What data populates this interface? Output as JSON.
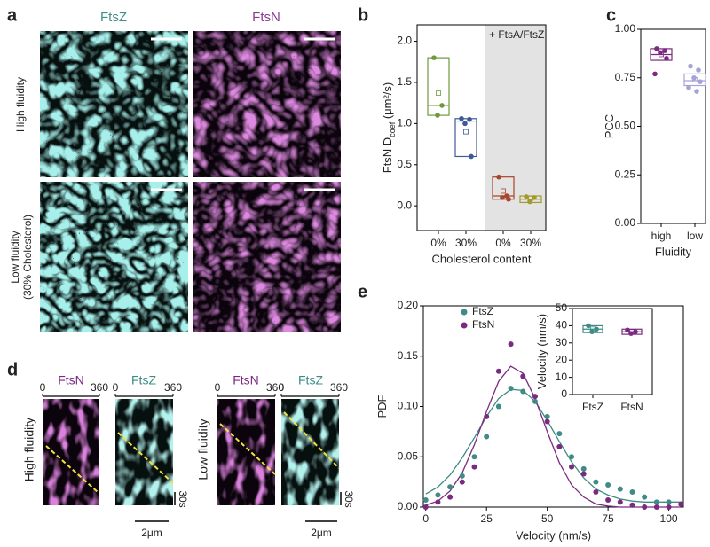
{
  "panel_labels": [
    "a",
    "b",
    "c",
    "d",
    "e"
  ],
  "microscopy": {
    "columns": [
      "FtsZ",
      "FtsN"
    ],
    "rows": [
      [
        "High fluidity"
      ],
      [
        "Low fluidity",
        "(30% Cholesterol)"
      ]
    ]
  },
  "kymographs": {
    "channels": [
      "FtsN",
      "FtsZ"
    ],
    "rows": [
      "High fluidity",
      "Low fluidity"
    ],
    "ticks": [
      0,
      360
    ],
    "time_scale": "30s",
    "length_scale": "2μm"
  },
  "chart_data": [
    {
      "type": "box",
      "annotation": "+ FtsA/FtsZ",
      "ylabel": "FtsN D",
      "ylabel_sub": "coef",
      "ylabel_unit": " (μm²/s)",
      "xlabel": "Cholesterol content",
      "categories": [
        "0%",
        "30%",
        "0%",
        "30%"
      ],
      "ylim": [
        -0.3,
        2.2
      ],
      "yticks": [
        {
          "value": 0,
          "label": "0.0"
        },
        {
          "value": 0.5,
          "label": "0.5"
        },
        {
          "value": 1,
          "label": "1.0"
        },
        {
          "value": 1.5,
          "label": "1.5"
        },
        {
          "value": 2,
          "label": "2.0"
        }
      ],
      "boxes": [
        {
          "color": "#6e9a3c",
          "q1": 1.1,
          "median": 1.22,
          "q3": 1.8,
          "mean": 1.37,
          "points": [
            1.8,
            1.22,
            1.1
          ]
        },
        {
          "color": "#3d5a99",
          "q1": 0.6,
          "median": 1.03,
          "q3": 1.06,
          "mean": 0.9,
          "points": [
            1.06,
            1.05,
            1.0,
            0.6
          ]
        },
        {
          "color": "#a8462c",
          "q1": 0.08,
          "median": 0.12,
          "q3": 0.35,
          "mean": 0.18,
          "points": [
            0.35,
            0.12,
            0.1,
            0.08
          ]
        },
        {
          "color": "#a39a2c",
          "q1": 0.04,
          "median": 0.08,
          "q3": 0.12,
          "mean": 0.09,
          "points": [
            0.11,
            0.1,
            0.05
          ]
        }
      ]
    },
    {
      "type": "box",
      "xlabel": "Fluidity",
      "ylabel": "PCC",
      "categories": [
        "high",
        "low"
      ],
      "ylim": [
        0,
        1
      ],
      "yticks": [
        {
          "value": 0,
          "label": "0.00"
        },
        {
          "value": 0.25,
          "label": "0.25"
        },
        {
          "value": 0.5,
          "label": "0.50"
        },
        {
          "value": 0.75,
          "label": "0.75"
        },
        {
          "value": 1,
          "label": "1.00"
        }
      ],
      "boxes": [
        {
          "color": "#7b2a7e",
          "q1": 0.84,
          "median": 0.87,
          "q3": 0.9,
          "mean": 0.87,
          "points": [
            0.9,
            0.89,
            0.88,
            0.85,
            0.77
          ]
        },
        {
          "color": "#a7a3d6",
          "q1": 0.71,
          "median": 0.735,
          "q3": 0.77,
          "mean": 0.74,
          "points": [
            0.81,
            0.79,
            0.75,
            0.73,
            0.7,
            0.68
          ]
        }
      ]
    },
    {
      "type": "scatter",
      "xlabel": "Velocity (nm/s)",
      "ylabel": "PDF",
      "xlim": [
        -1,
        106
      ],
      "ylim": [
        0,
        0.2
      ],
      "xticks": [
        0,
        25,
        50,
        75,
        100
      ],
      "yticks": [
        {
          "value": 0,
          "label": "0.00"
        },
        {
          "value": 0.05,
          "label": "0.05"
        },
        {
          "value": 0.1,
          "label": "0.10"
        },
        {
          "value": 0.15,
          "label": "0.15"
        },
        {
          "value": 0.2,
          "label": "0.20"
        }
      ],
      "legend": "upper left",
      "x": [
        0,
        5,
        10,
        15,
        20,
        25,
        30,
        35,
        40,
        45,
        50,
        55,
        60,
        65,
        70,
        75,
        80,
        85,
        90,
        95,
        100,
        105
      ],
      "series": [
        {
          "name": "FtsZ",
          "color": "#3e8c84",
          "values": [
            0.007,
            0.012,
            0.02,
            0.031,
            0.05,
            0.07,
            0.1,
            0.118,
            0.115,
            0.105,
            0.09,
            0.073,
            0.05,
            0.038,
            0.025,
            0.022,
            0.018,
            0.015,
            0.01,
            0.005,
            0.005,
            0.003
          ]
        },
        {
          "name": "FtsN",
          "color": "#7a2a80",
          "values": [
            0.0,
            0.005,
            0.01,
            0.025,
            0.04,
            0.09,
            0.135,
            0.162,
            0.13,
            0.11,
            0.085,
            0.06,
            0.04,
            0.033,
            0.015,
            0.007,
            0.005,
            0.002,
            0.0,
            0.0,
            0.0,
            0.003
          ]
        }
      ],
      "fits": [
        {
          "color": "#3e8c84",
          "values": [
            0.013,
            0.02,
            0.032,
            0.049,
            0.069,
            0.09,
            0.108,
            0.117,
            0.116,
            0.105,
            0.086,
            0.065,
            0.045,
            0.029,
            0.018,
            0.012,
            0.008,
            0.006,
            0.005,
            0.005,
            0.005,
            0.005
          ]
        },
        {
          "color": "#7a2a80",
          "values": [
            0.002,
            0.006,
            0.016,
            0.034,
            0.062,
            0.095,
            0.125,
            0.14,
            0.133,
            0.108,
            0.075,
            0.044,
            0.022,
            0.01,
            0.003,
            0.001,
            0,
            0,
            0,
            0,
            0,
            0
          ]
        }
      ]
    },
    {
      "type": "box",
      "ylabel": "Velocity (nm/s)",
      "categories": [
        "FtsZ",
        "FtsN"
      ],
      "ylim": [
        0,
        50
      ],
      "yticks": [
        0,
        10,
        20,
        30,
        40,
        50
      ],
      "boxes": [
        {
          "color": "#3e8c84",
          "q1": 36,
          "median": 38,
          "q3": 40,
          "mean": 38,
          "points": [
            40,
            38,
            36.5
          ]
        },
        {
          "color": "#7a2a80",
          "q1": 35,
          "median": 36.5,
          "q3": 38,
          "mean": 36.5,
          "points": [
            37.5,
            36.5,
            35.5
          ]
        }
      ]
    }
  ]
}
